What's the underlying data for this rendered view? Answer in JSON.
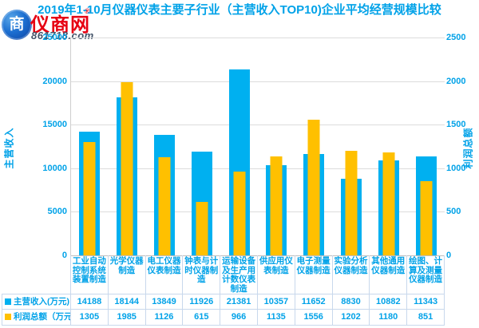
{
  "header": {
    "title": "2019年1-10月仪器仪表主要子行业（主营收入TOP10)企业平均经营规模比较",
    "logo": {
      "brand": "仪商网",
      "registered": "®",
      "domain": "861718.com",
      "icon_glyph": "商"
    }
  },
  "colors": {
    "accent_text": "#00a2e8",
    "bar_blue": "#00b0f0",
    "bar_yellow": "#ffc000",
    "gridline": "#dcdcdc",
    "table_border": "#c8d8ec",
    "logo_red": "#e60012"
  },
  "chart_data": {
    "type": "bar",
    "dual_axis": true,
    "title": "2019年1-10月仪器仪表主要子行业（主营收入TOP10)企业平均经营规模比较",
    "grid": "horizontal",
    "legend_position": "bottom-table",
    "categories": [
      "工业自动控制系统装置制造",
      "光学仪器制造",
      "电工仪器仪表制造",
      "钟表与计时仪器制造",
      "运输设备及生产用计数仪表制造",
      "供应用仪表制造",
      "电子测量仪器制造",
      "实验分析仪器制造",
      "其他通用仪器制造",
      "绘图、计算及测量仪器制造"
    ],
    "series": [
      {
        "name": "主营收入(万元)",
        "axis": "left",
        "color": "#00b0f0",
        "values": [
          14188,
          18144,
          13849,
          11926,
          21381,
          10357,
          11652,
          8830,
          10882,
          11343
        ]
      },
      {
        "name": "利润总额（万元）",
        "axis": "right",
        "color": "#ffc000",
        "values": [
          1305,
          1985,
          1126,
          615,
          966,
          1135,
          1556,
          1202,
          1180,
          851
        ]
      }
    ],
    "left_axis": {
      "label": "主营收入",
      "min": 0,
      "max": 25000,
      "ticks": [
        "25000",
        "20000",
        "15000",
        "10000",
        "5000",
        "0"
      ]
    },
    "right_axis": {
      "label": "利润总额",
      "min": 0,
      "max": 2500,
      "ticks": [
        "2500",
        "2000",
        "1500",
        "1000",
        "500",
        "0"
      ]
    }
  }
}
